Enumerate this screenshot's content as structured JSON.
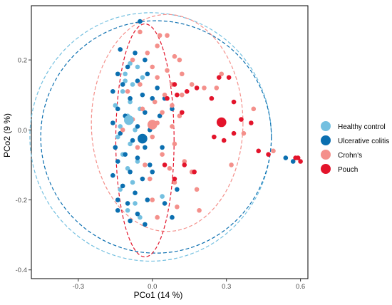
{
  "chart_data": {
    "type": "scatter",
    "title": "",
    "xlabel": "PCo1 (14 %)",
    "ylabel": "PCo2 (9 %)",
    "xlim": [
      -0.49,
      0.63
    ],
    "ylim": [
      -0.425,
      0.355
    ],
    "xticks": [
      -0.3,
      0.0,
      0.3,
      0.6
    ],
    "xtick_labels": [
      "-0.3",
      "0.0",
      "0.3",
      "0.6"
    ],
    "yticks": [
      -0.4,
      -0.2,
      0.0,
      0.2
    ],
    "ytick_labels": [
      "-0.4",
      "-0.2",
      "0.0",
      "0.2"
    ],
    "grid": false,
    "legend_position": "right",
    "series": [
      {
        "name": "Healthy control",
        "color": "#74c0e0",
        "centroid": [
          -0.095,
          0.028
        ],
        "ellipse": {
          "center": [
            -0.007,
            -0.02
          ],
          "rx": 0.489,
          "ry": 0.355
        },
        "points": [
          [
            -0.09,
            0.19
          ],
          [
            -0.06,
            0.18
          ],
          [
            -0.11,
            0.16
          ],
          [
            -0.04,
            0.15
          ],
          [
            -0.08,
            0.13
          ],
          [
            -0.12,
            0.11
          ],
          [
            -0.09,
            0.08
          ],
          [
            -0.15,
            0.07
          ],
          [
            -0.05,
            0.06
          ],
          [
            -0.1,
            0.04
          ],
          [
            -0.13,
            0.01
          ],
          [
            -0.07,
            0.0
          ],
          [
            -0.14,
            -0.02
          ],
          [
            -0.09,
            -0.04
          ],
          [
            -0.12,
            -0.07
          ],
          [
            -0.06,
            -0.09
          ],
          [
            -0.1,
            -0.11
          ],
          [
            -0.08,
            -0.15
          ],
          [
            -0.13,
            -0.17
          ],
          [
            -0.07,
            -0.21
          ],
          [
            -0.1,
            -0.23
          ],
          [
            -0.05,
            -0.25
          ],
          [
            0.04,
            -0.19
          ],
          [
            -0.11,
            0.14
          ]
        ]
      },
      {
        "name": "Ulcerative colitis",
        "color": "#0b6fb0",
        "centroid": [
          -0.04,
          -0.025
        ],
        "ellipse": {
          "center": [
            0.015,
            -0.02
          ],
          "rx": 0.467,
          "ry": 0.332
        },
        "points": [
          [
            -0.05,
            0.31
          ],
          [
            -0.13,
            0.23
          ],
          [
            -0.07,
            0.22
          ],
          [
            -0.03,
            0.2
          ],
          [
            -0.1,
            0.18
          ],
          [
            -0.14,
            0.16
          ],
          [
            -0.02,
            0.16
          ],
          [
            -0.06,
            0.14
          ],
          [
            -0.12,
            0.13
          ],
          [
            -0.16,
            0.11
          ],
          [
            -0.04,
            0.1
          ],
          [
            -0.09,
            0.09
          ],
          [
            0.0,
            0.09
          ],
          [
            -0.14,
            0.06
          ],
          [
            -0.03,
            0.05
          ],
          [
            -0.11,
            0.04
          ],
          [
            0.03,
            0.04
          ],
          [
            -0.16,
            0.02
          ],
          [
            -0.06,
            0.01
          ],
          [
            -0.01,
            0.0
          ],
          [
            -0.13,
            -0.01
          ],
          [
            -0.08,
            -0.03
          ],
          [
            -0.15,
            -0.05
          ],
          [
            -0.03,
            -0.05
          ],
          [
            -0.11,
            -0.07
          ],
          [
            -0.06,
            -0.08
          ],
          [
            -0.14,
            -0.09
          ],
          [
            -0.01,
            -0.1
          ],
          [
            -0.09,
            -0.12
          ],
          [
            -0.16,
            -0.13
          ],
          [
            -0.04,
            -0.14
          ],
          [
            -0.12,
            -0.16
          ],
          [
            -0.07,
            -0.18
          ],
          [
            -0.14,
            -0.2
          ],
          [
            -0.02,
            -0.2
          ],
          [
            -0.1,
            -0.21
          ],
          [
            -0.14,
            -0.23
          ],
          [
            -0.06,
            -0.24
          ],
          [
            -0.09,
            -0.26
          ],
          [
            -0.03,
            -0.27
          ],
          [
            0.02,
            0.12
          ],
          [
            0.05,
            0.09
          ],
          [
            0.04,
            -0.05
          ],
          [
            0.0,
            -0.12
          ],
          [
            0.05,
            -0.21
          ],
          [
            0.1,
            -0.17
          ],
          [
            0.08,
            0.06
          ],
          [
            0.54,
            -0.08
          ],
          [
            0.57,
            -0.09
          ],
          [
            0.08,
            -0.25
          ]
        ]
      },
      {
        "name": "Crohn's",
        "color": "#f4908b",
        "centroid": [
          0.0,
          0.015
        ],
        "ellipse": {
          "center": [
            0.06,
            0.02
          ],
          "rx": 0.307,
          "ry": 0.31
        },
        "points": [
          [
            -0.05,
            0.28
          ],
          [
            0.03,
            0.27
          ],
          [
            0.06,
            0.27
          ],
          [
            0.02,
            0.24
          ],
          [
            -0.02,
            0.22
          ],
          [
            0.09,
            0.21
          ],
          [
            0.11,
            0.2
          ],
          [
            -0.08,
            0.2
          ],
          [
            0.0,
            0.18
          ],
          [
            0.06,
            0.17
          ],
          [
            0.12,
            0.16
          ],
          [
            0.02,
            0.15
          ],
          [
            -0.05,
            0.13
          ],
          [
            0.08,
            0.13
          ],
          [
            0.16,
            0.13
          ],
          [
            0.21,
            0.12
          ],
          [
            0.26,
            0.12
          ],
          [
            -0.1,
            0.11
          ],
          [
            0.05,
            0.1
          ],
          [
            0.12,
            0.1
          ],
          [
            0.01,
            0.08
          ],
          [
            0.08,
            0.07
          ],
          [
            -0.04,
            0.06
          ],
          [
            0.04,
            0.05
          ],
          [
            0.11,
            0.04
          ],
          [
            -0.08,
            0.03
          ],
          [
            0.02,
            0.02
          ],
          [
            0.08,
            0.01
          ],
          [
            -0.12,
            0.0
          ],
          [
            0.0,
            -0.02
          ],
          [
            0.09,
            -0.04
          ],
          [
            -0.06,
            -0.05
          ],
          [
            0.04,
            -0.07
          ],
          [
            0.13,
            -0.09
          ],
          [
            -0.03,
            -0.1
          ],
          [
            0.07,
            -0.11
          ],
          [
            0.32,
            -0.1
          ],
          [
            0.16,
            -0.12
          ],
          [
            -0.01,
            -0.14
          ],
          [
            0.09,
            -0.15
          ],
          [
            0.18,
            -0.17
          ],
          [
            0.0,
            -0.2
          ],
          [
            0.1,
            -0.22
          ],
          [
            0.19,
            -0.23
          ],
          [
            0.02,
            -0.25
          ],
          [
            0.41,
            0.06
          ],
          [
            0.37,
            -0.01
          ],
          [
            0.49,
            -0.06
          ],
          [
            0.28,
            0.16
          ]
        ]
      },
      {
        "name": "Pouch",
        "color": "#e3142b",
        "centroid": [
          0.28,
          0.022
        ],
        "ellipse": {
          "center": [
            -0.03,
            -0.03
          ],
          "rx": 0.118,
          "ry": 0.333
        },
        "points": [
          [
            0.06,
            0.09
          ],
          [
            0.1,
            0.1
          ],
          [
            0.14,
            0.11
          ],
          [
            0.18,
            0.12
          ],
          [
            0.27,
            0.15
          ],
          [
            0.31,
            0.15
          ],
          [
            0.24,
            0.09
          ],
          [
            0.33,
            0.08
          ],
          [
            0.36,
            0.03
          ],
          [
            0.33,
            -0.01
          ],
          [
            0.4,
            0.02
          ],
          [
            0.25,
            -0.02
          ],
          [
            0.29,
            -0.03
          ],
          [
            0.43,
            -0.06
          ],
          [
            0.47,
            -0.07
          ],
          [
            0.13,
            -0.1
          ],
          [
            0.17,
            -0.12
          ],
          [
            0.09,
            -0.14
          ],
          [
            0.05,
            -0.1
          ],
          [
            0.58,
            -0.08
          ],
          [
            0.59,
            -0.08
          ],
          [
            0.6,
            -0.09
          ],
          [
            0.09,
            0.13
          ],
          [
            0.12,
            0.05
          ]
        ]
      }
    ]
  }
}
